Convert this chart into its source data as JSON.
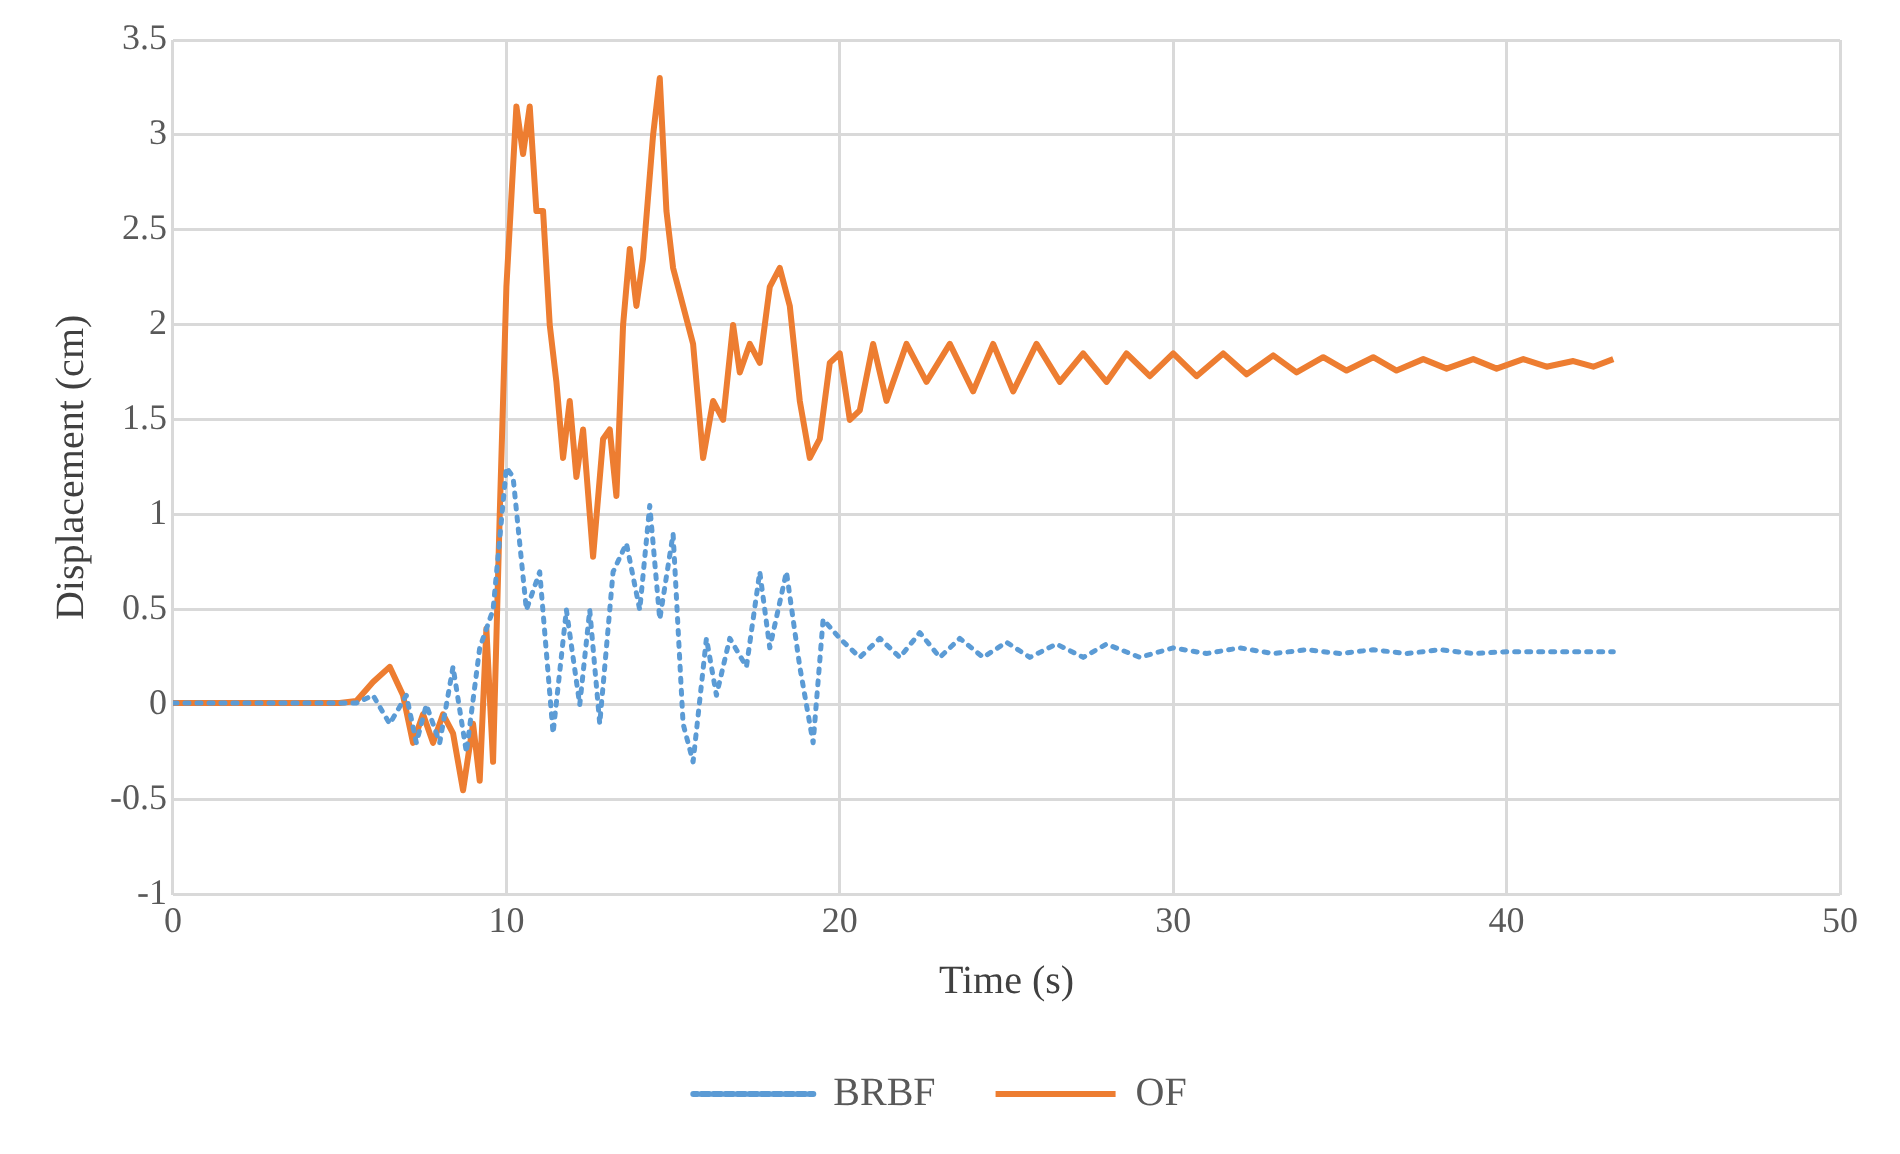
{
  "chart_data": {
    "type": "line",
    "xlabel": "Time (s)",
    "ylabel": "Displacement (cm)",
    "xlim": [
      0,
      50
    ],
    "xticks": [
      0,
      10,
      20,
      30,
      40,
      50
    ],
    "ylim": [
      -1,
      3.5
    ],
    "yticks": [
      -1,
      -0.5,
      0,
      0.5,
      1,
      1.5,
      2,
      2.5,
      3,
      3.5
    ],
    "grid": true,
    "legend": "bottom",
    "marker": "none",
    "series": [
      {
        "name": "BRBF",
        "color": "#5b9bd5",
        "line_style": "dotted",
        "x": [
          0,
          5.5,
          6,
          6.5,
          7,
          7.3,
          7.6,
          8,
          8.4,
          8.8,
          9.2,
          9.6,
          10,
          10.2,
          10.6,
          11,
          11.4,
          11.8,
          12.2,
          12.5,
          12.8,
          13.2,
          13.6,
          14,
          14.3,
          14.6,
          15,
          15.3,
          15.6,
          16,
          16.3,
          16.7,
          17.2,
          17.6,
          17.9,
          18.4,
          18.8,
          19.2,
          19.5,
          20,
          20.6,
          21.2,
          21.8,
          22.4,
          23,
          23.6,
          24.3,
          25,
          25.7,
          26.5,
          27.3,
          28,
          29,
          30,
          31,
          32,
          33,
          34,
          35,
          36,
          37,
          38,
          39,
          40,
          42,
          43.2
        ],
        "values": [
          0.01,
          0.01,
          0.05,
          -0.1,
          0.05,
          -0.2,
          0,
          -0.2,
          0.2,
          -0.25,
          0.3,
          0.5,
          1.25,
          1.2,
          0.5,
          0.7,
          -0.15,
          0.5,
          0,
          0.5,
          -0.1,
          0.7,
          0.85,
          0.5,
          1.05,
          0.45,
          0.9,
          -0.1,
          -0.3,
          0.35,
          0.05,
          0.35,
          0.2,
          0.7,
          0.3,
          0.7,
          0.2,
          -0.2,
          0.45,
          0.35,
          0.25,
          0.35,
          0.25,
          0.38,
          0.25,
          0.35,
          0.25,
          0.33,
          0.25,
          0.32,
          0.25,
          0.32,
          0.25,
          0.3,
          0.27,
          0.3,
          0.27,
          0.29,
          0.27,
          0.29,
          0.27,
          0.29,
          0.27,
          0.28,
          0.28,
          0.28
        ]
      },
      {
        "name": "OF",
        "color": "#ed7d31",
        "line_style": "solid",
        "x": [
          0,
          5,
          5.5,
          6,
          6.5,
          6.9,
          7.2,
          7.5,
          7.8,
          8.1,
          8.4,
          8.7,
          9,
          9.2,
          9.4,
          9.6,
          9.8,
          10,
          10.3,
          10.5,
          10.7,
          10.9,
          11.1,
          11.3,
          11.5,
          11.7,
          11.9,
          12.1,
          12.3,
          12.6,
          12.9,
          13.1,
          13.3,
          13.5,
          13.7,
          13.9,
          14.1,
          14.4,
          14.6,
          14.8,
          15,
          15.3,
          15.6,
          15.9,
          16.2,
          16.5,
          16.8,
          17,
          17.3,
          17.6,
          17.9,
          18.2,
          18.5,
          18.8,
          19.1,
          19.4,
          19.7,
          20,
          20.3,
          20.6,
          21,
          21.4,
          22,
          22.6,
          23.3,
          24,
          24.6,
          25.2,
          25.9,
          26.6,
          27.3,
          28,
          28.6,
          29.3,
          30,
          30.7,
          31.5,
          32.2,
          33,
          33.7,
          34.5,
          35.2,
          36,
          36.7,
          37.5,
          38.2,
          39,
          39.7,
          40.5,
          41.2,
          42,
          42.6,
          43.2
        ],
        "values": [
          0.01,
          0.01,
          0.02,
          0.12,
          0.2,
          0.05,
          -0.2,
          -0.05,
          -0.2,
          -0.05,
          -0.15,
          -0.45,
          -0.1,
          -0.4,
          0.4,
          -0.3,
          1,
          2.2,
          3.15,
          2.9,
          3.15,
          2.6,
          2.6,
          2,
          1.7,
          1.3,
          1.6,
          1.2,
          1.45,
          0.78,
          1.4,
          1.45,
          1.1,
          2,
          2.4,
          2.1,
          2.35,
          3,
          3.3,
          2.6,
          2.3,
          2.1,
          1.9,
          1.3,
          1.6,
          1.5,
          2,
          1.75,
          1.9,
          1.8,
          2.2,
          2.3,
          2.1,
          1.6,
          1.3,
          1.4,
          1.8,
          1.85,
          1.5,
          1.55,
          1.9,
          1.6,
          1.9,
          1.7,
          1.9,
          1.65,
          1.9,
          1.65,
          1.9,
          1.7,
          1.85,
          1.7,
          1.85,
          1.73,
          1.85,
          1.73,
          1.85,
          1.74,
          1.84,
          1.75,
          1.83,
          1.76,
          1.83,
          1.76,
          1.82,
          1.77,
          1.82,
          1.77,
          1.82,
          1.78,
          1.81,
          1.78,
          1.82
        ]
      }
    ]
  }
}
